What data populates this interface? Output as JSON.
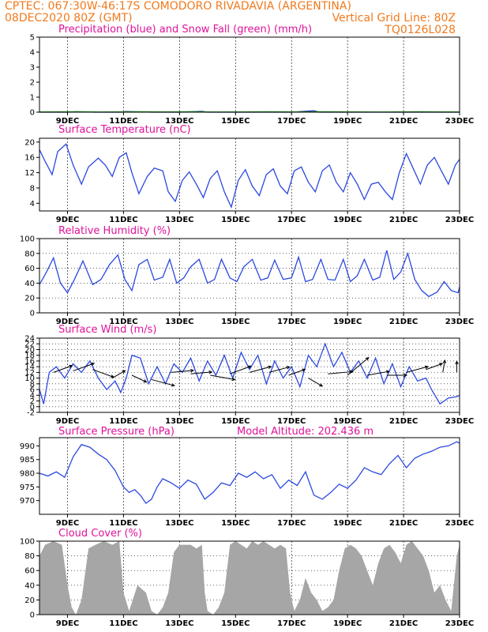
{
  "header": {
    "line1_left": "CPTEC:   067:30W-46:17S   COMODORO RIVADAVIA (ARGENTINA)",
    "line2_left": "08DEC2020 80Z (GMT)",
    "line2_right": "Vertical Grid Line: 80Z",
    "line3_right": "TQ0126L028"
  },
  "x_axis": {
    "start_day": 8,
    "end_day": 23,
    "tick_days": [
      9,
      11,
      13,
      15,
      17,
      19,
      21,
      23
    ],
    "tick_labels": [
      "9DEC",
      "11DEC",
      "13DEC",
      "15DEC",
      "17DEC",
      "19DEC",
      "21DEC",
      "23DEC"
    ]
  },
  "chart_data": [
    {
      "type": "line",
      "title": "Precipitation (blue) and Snow Fall (green) (mm/h)",
      "ylim": [
        0,
        5
      ],
      "yticks": [
        0,
        1,
        2,
        3,
        4,
        5
      ],
      "hgrid": false,
      "series": [
        {
          "color": "#2b2bd6",
          "x": [
            8.0,
            9.0,
            9.3,
            10.0,
            10.9,
            11.1,
            12.0,
            13.0,
            13.8,
            14.0,
            15.0,
            16.0,
            17.0,
            17.8,
            18.0,
            19.0,
            20.0,
            21.0,
            22.0,
            23.0
          ],
          "y": [
            0.0,
            0.0,
            0.03,
            0.0,
            0.0,
            0.05,
            0.0,
            0.0,
            0.06,
            0.0,
            0.0,
            0.0,
            0.0,
            0.1,
            0.0,
            0.0,
            0.0,
            0.0,
            0.0,
            0.0
          ]
        },
        {
          "color": "#22aa22",
          "x": [
            8.0,
            9.5,
            10.2,
            11.6,
            12.4,
            13.5,
            14.3,
            15.2,
            16.1,
            17.2,
            18.2,
            19.4,
            20.3,
            21.5,
            22.4,
            23.0
          ],
          "y": [
            0.02,
            0.03,
            0.01,
            0.03,
            0.02,
            0.03,
            0.01,
            0.02,
            0.03,
            0.02,
            0.03,
            0.02,
            0.01,
            0.03,
            0.02,
            0.02
          ]
        }
      ]
    },
    {
      "type": "line",
      "title": "Surface Temperature (nC)",
      "ylim": [
        2,
        21
      ],
      "yticks": [
        4,
        8,
        12,
        16,
        20
      ],
      "hgrid": false,
      "series": [
        {
          "color": "#2b48e0",
          "x": [
            8.0,
            8.2,
            8.45,
            8.65,
            8.95,
            9.2,
            9.5,
            9.75,
            10.1,
            10.35,
            10.6,
            10.85,
            11.1,
            11.3,
            11.55,
            11.85,
            12.1,
            12.4,
            12.6,
            12.85,
            13.1,
            13.35,
            13.6,
            13.85,
            14.1,
            14.35,
            14.6,
            14.85,
            15.1,
            15.35,
            15.6,
            15.85,
            16.1,
            16.35,
            16.6,
            16.85,
            17.1,
            17.35,
            17.6,
            17.85,
            18.1,
            18.35,
            18.6,
            18.85,
            19.1,
            19.35,
            19.6,
            19.85,
            20.1,
            20.35,
            20.6,
            20.85,
            21.1,
            21.35,
            21.6,
            21.85,
            22.1,
            22.35,
            22.6,
            22.85,
            23.0
          ],
          "y": [
            18.0,
            15.0,
            11.5,
            17.5,
            19.5,
            14.0,
            9.0,
            13.5,
            15.8,
            14.0,
            11.0,
            16.0,
            17.2,
            12.0,
            6.5,
            11.0,
            13.2,
            12.5,
            7.0,
            4.5,
            10.0,
            12.2,
            9.0,
            5.5,
            10.5,
            12.5,
            7.0,
            3.0,
            10.0,
            12.8,
            8.5,
            6.0,
            11.5,
            13.0,
            8.5,
            6.5,
            12.5,
            13.5,
            9.5,
            7.0,
            12.5,
            14.0,
            9.5,
            7.0,
            12.0,
            9.0,
            5.0,
            9.0,
            9.5,
            7.0,
            5.0,
            12.0,
            17.0,
            13.0,
            9.0,
            14.0,
            16.0,
            12.5,
            9.0,
            14.0,
            15.5
          ]
        }
      ]
    },
    {
      "type": "line",
      "title": "Relative Humidity (%)",
      "ylim": [
        0,
        100
      ],
      "yticks": [
        0,
        20,
        40,
        60,
        80,
        100
      ],
      "hgrid": true,
      "series": [
        {
          "color": "#2b48e0",
          "x": [
            8.0,
            8.25,
            8.5,
            8.75,
            9.0,
            9.25,
            9.55,
            9.9,
            10.2,
            10.5,
            10.8,
            11.05,
            11.3,
            11.55,
            11.85,
            12.1,
            12.4,
            12.65,
            12.9,
            13.15,
            13.4,
            13.7,
            14.0,
            14.25,
            14.5,
            14.8,
            15.05,
            15.3,
            15.6,
            15.9,
            16.15,
            16.4,
            16.7,
            17.0,
            17.25,
            17.5,
            17.75,
            18.05,
            18.3,
            18.55,
            18.85,
            19.1,
            19.35,
            19.6,
            19.9,
            20.15,
            20.4,
            20.65,
            20.9,
            21.15,
            21.4,
            21.65,
            21.9,
            22.2,
            22.45,
            22.7,
            22.95,
            23.0
          ],
          "y": [
            38.0,
            55.0,
            74.0,
            40.0,
            27.0,
            45.0,
            70.0,
            38.0,
            45.0,
            65.0,
            78.0,
            45.0,
            30.0,
            65.0,
            72.0,
            44.0,
            48.0,
            72.0,
            40.0,
            47.0,
            62.0,
            72.0,
            40.0,
            45.0,
            72.0,
            47.0,
            42.0,
            62.0,
            72.0,
            44.0,
            47.0,
            71.0,
            45.0,
            47.0,
            75.0,
            42.0,
            45.0,
            72.0,
            45.0,
            44.0,
            72.0,
            42.0,
            50.0,
            72.0,
            44.0,
            48.0,
            84.0,
            45.0,
            55.0,
            80.0,
            45.0,
            30.0,
            22.0,
            28.0,
            42.0,
            30.0,
            27.0,
            35.0
          ]
        }
      ]
    },
    {
      "type": "line",
      "title": "Surface Wind (m/s)",
      "ylim": [
        -2,
        24
      ],
      "yticks": [
        -2,
        0,
        2,
        4,
        6,
        8,
        10,
        12,
        14,
        16,
        18,
        20,
        22,
        24
      ],
      "hgrid": true,
      "series": [
        {
          "color": "#2b48e0",
          "x": [
            8.0,
            8.15,
            8.35,
            8.6,
            8.9,
            9.2,
            9.5,
            9.8,
            10.1,
            10.4,
            10.7,
            10.9,
            11.1,
            11.3,
            11.6,
            11.9,
            12.2,
            12.5,
            12.8,
            13.1,
            13.4,
            13.7,
            14.0,
            14.3,
            14.6,
            14.9,
            15.2,
            15.5,
            15.8,
            16.1,
            16.4,
            16.7,
            17.0,
            17.3,
            17.6,
            17.9,
            18.2,
            18.5,
            18.8,
            19.1,
            19.4,
            19.7,
            20.0,
            20.3,
            20.6,
            20.9,
            21.2,
            21.5,
            21.8,
            22.0,
            22.3,
            22.6,
            22.9,
            23.0
          ],
          "y": [
            6.0,
            1.0,
            12.0,
            14.0,
            10.0,
            15.0,
            12.0,
            16.0,
            10.0,
            6.0,
            9.0,
            5.0,
            10.0,
            18.0,
            17.0,
            8.0,
            14.0,
            8.0,
            15.0,
            12.0,
            17.0,
            9.0,
            16.0,
            11.0,
            18.0,
            10.0,
            19.0,
            13.0,
            18.0,
            8.0,
            16.0,
            10.0,
            14.0,
            7.0,
            18.0,
            14.0,
            22.0,
            14.0,
            19.0,
            12.0,
            16.0,
            10.0,
            17.0,
            8.0,
            15.0,
            7.0,
            14.0,
            9.0,
            10.0,
            6.0,
            1.0,
            3.0,
            3.5,
            4.0
          ]
        }
      ],
      "vectors": {
        "color": "#000000",
        "x": [
          8.5,
          9.2,
          9.9,
          10.6,
          11.3,
          12.0,
          12.7,
          13.4,
          14.1,
          14.8,
          15.5,
          16.2,
          16.9,
          17.6,
          18.3,
          19.0,
          19.7,
          20.4,
          21.1,
          21.8,
          22.4,
          22.9
        ],
        "y": [
          12.0,
          12.5,
          13.0,
          10.0,
          11.0,
          9.5,
          12.0,
          11.5,
          11.0,
          11.5,
          12.0,
          12.0,
          11.0,
          10.0,
          11.5,
          11.0,
          11.0,
          11.0,
          12.0,
          13.0,
          12.0,
          12.0
        ],
        "speed": [
          12.0,
          14.0,
          14.0,
          8.0,
          9.0,
          15.0,
          14.0,
          13.0,
          16.0,
          14.0,
          14.0,
          13.0,
          10.0,
          9.0,
          16.0,
          18.0,
          14.0,
          12.0,
          14.0,
          10.0,
          6.0,
          5.0
        ],
        "direction_deg": [
          20.0,
          20.0,
          -20.0,
          30.0,
          -25.0,
          -15.0,
          5.0,
          5.0,
          -10.0,
          20.0,
          15.0,
          15.0,
          20.0,
          -30.0,
          5.0,
          40.0,
          10.0,
          0.0,
          15.0,
          20.0,
          80.0,
          90.0
        ]
      }
    },
    {
      "type": "line",
      "title": "Surface Pressure (hPa)",
      "annotation": "Model Altitude: 202.436 m",
      "ylim": [
        965,
        993
      ],
      "yticks": [
        970,
        975,
        980,
        985,
        990
      ],
      "hgrid": false,
      "series": [
        {
          "color": "#2b48e0",
          "x": [
            8.0,
            8.3,
            8.6,
            8.9,
            9.2,
            9.5,
            9.8,
            10.1,
            10.4,
            10.7,
            11.0,
            11.2,
            11.4,
            11.6,
            11.8,
            12.0,
            12.2,
            12.4,
            12.7,
            13.0,
            13.3,
            13.6,
            13.9,
            14.2,
            14.5,
            14.8,
            15.1,
            15.4,
            15.7,
            16.0,
            16.3,
            16.6,
            16.9,
            17.2,
            17.5,
            17.8,
            18.1,
            18.4,
            18.7,
            19.0,
            19.3,
            19.6,
            19.9,
            20.2,
            20.5,
            20.8,
            21.1,
            21.4,
            21.7,
            22.0,
            22.3,
            22.6,
            22.9,
            23.0
          ],
          "y": [
            980.0,
            979.0,
            980.5,
            978.5,
            986.0,
            990.5,
            989.5,
            987.0,
            985.0,
            981.0,
            975.0,
            973.0,
            974.0,
            972.0,
            969.0,
            970.5,
            975.0,
            978.0,
            976.5,
            974.5,
            977.5,
            976.0,
            970.5,
            973.0,
            976.5,
            975.5,
            980.0,
            978.5,
            980.5,
            978.0,
            979.5,
            974.5,
            977.5,
            975.5,
            980.5,
            972.0,
            970.5,
            973.0,
            976.0,
            974.5,
            977.5,
            982.0,
            980.5,
            979.5,
            983.5,
            986.5,
            982.0,
            985.5,
            987.0,
            988.0,
            989.5,
            990.0,
            991.5,
            991.0
          ]
        }
      ]
    },
    {
      "type": "area",
      "title": "Cloud Cover (%)",
      "ylim": [
        0,
        100
      ],
      "yticks": [
        0,
        20,
        40,
        60,
        80,
        100
      ],
      "hgrid": true,
      "series": [
        {
          "color": "#a6a6a6",
          "x": [
            8.0,
            8.2,
            8.5,
            8.8,
            9.0,
            9.15,
            9.3,
            9.5,
            9.75,
            10.0,
            10.3,
            10.6,
            10.85,
            11.0,
            11.2,
            11.5,
            11.8,
            12.0,
            12.2,
            12.4,
            12.6,
            12.8,
            13.0,
            13.2,
            13.4,
            13.6,
            13.8,
            13.9,
            14.0,
            14.2,
            14.4,
            14.6,
            14.8,
            15.0,
            15.2,
            15.4,
            15.6,
            15.8,
            16.0,
            16.2,
            16.4,
            16.6,
            16.8,
            16.95,
            17.1,
            17.3,
            17.5,
            17.7,
            17.9,
            18.1,
            18.3,
            18.5,
            18.7,
            18.9,
            19.1,
            19.3,
            19.5,
            19.7,
            19.9,
            20.1,
            20.3,
            20.5,
            20.7,
            20.9,
            21.1,
            21.3,
            21.5,
            21.7,
            21.9,
            22.1,
            22.3,
            22.5,
            22.7,
            22.9,
            23.0
          ],
          "y": [
            80.0,
            95.0,
            100.0,
            95.0,
            40.0,
            10.0,
            0.0,
            20.0,
            90.0,
            95.0,
            100.0,
            95.0,
            100.0,
            30.0,
            5.0,
            40.0,
            30.0,
            5.0,
            0.0,
            10.0,
            30.0,
            85.0,
            95.0,
            95.0,
            95.0,
            90.0,
            95.0,
            30.0,
            5.0,
            0.0,
            10.0,
            30.0,
            95.0,
            100.0,
            95.0,
            90.0,
            100.0,
            95.0,
            100.0,
            95.0,
            90.0,
            95.0,
            90.0,
            30.0,
            5.0,
            20.0,
            50.0,
            30.0,
            20.0,
            5.0,
            10.0,
            20.0,
            60.0,
            90.0,
            95.0,
            90.0,
            80.0,
            60.0,
            40.0,
            70.0,
            90.0,
            95.0,
            85.0,
            70.0,
            95.0,
            100.0,
            90.0,
            80.0,
            60.0,
            30.0,
            40.0,
            20.0,
            5.0,
            80.0,
            95.0
          ]
        }
      ]
    }
  ]
}
